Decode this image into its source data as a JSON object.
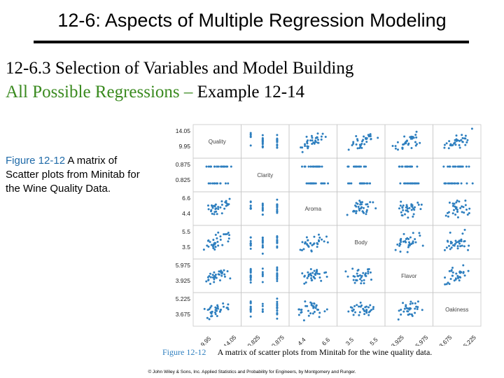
{
  "header": {
    "title": "12-6: Aspects of Multiple Regression Modeling",
    "heading": "12-6.3 Selection of Variables and Model Building",
    "subheading_green": "All Possible Regressions –",
    "subheading_black": "Example 12-14"
  },
  "caption": {
    "figure_label": "Figure 12-12",
    "text": "A matrix of Scatter plots from Minitab for the Wine Quality Data."
  },
  "figure": {
    "label": "Figure 12-12",
    "text": "A matrix of scatter plots from Minitab for the wine quality data.",
    "dot_color": "#2e7fbf"
  },
  "footer": {
    "copyright": "© John Wiley & Sons, Inc. Applied Statistics and Probability for Engineers, by Montgomery and Runger."
  },
  "chart_data": {
    "type": "scatter",
    "variables": [
      "Quality",
      "Clarity",
      "Aroma",
      "Body",
      "Flavor",
      "Oakiness"
    ],
    "y_ticks": [
      [
        "14.05",
        "9.95"
      ],
      [
        "0.875",
        "0.825"
      ],
      [
        "6.6",
        "4.4"
      ],
      [
        "5.5",
        "3.5"
      ],
      [
        "5.975",
        "3.925"
      ],
      [
        "5.225",
        "3.675"
      ]
    ],
    "x_ticks": [
      [
        "9.95",
        "14.05"
      ],
      [
        "0.825",
        "0.875"
      ],
      [
        "4.4",
        "6.6"
      ],
      [
        "3.5",
        "5.5"
      ],
      [
        "3.925",
        "5.975"
      ],
      [
        "3.675",
        "5.225"
      ]
    ]
  }
}
